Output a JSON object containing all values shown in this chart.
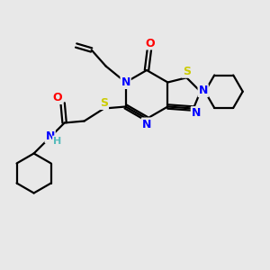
{
  "bg_color": "#e8e8e8",
  "bond_color": "#000000",
  "atom_colors": {
    "N": "#0000ff",
    "O": "#ff0000",
    "S": "#cccc00",
    "H": "#55bbbb",
    "C": "#000000"
  },
  "figsize": [
    3.0,
    3.0
  ],
  "dpi": 100,
  "lw": 1.6,
  "fontsize": 9
}
